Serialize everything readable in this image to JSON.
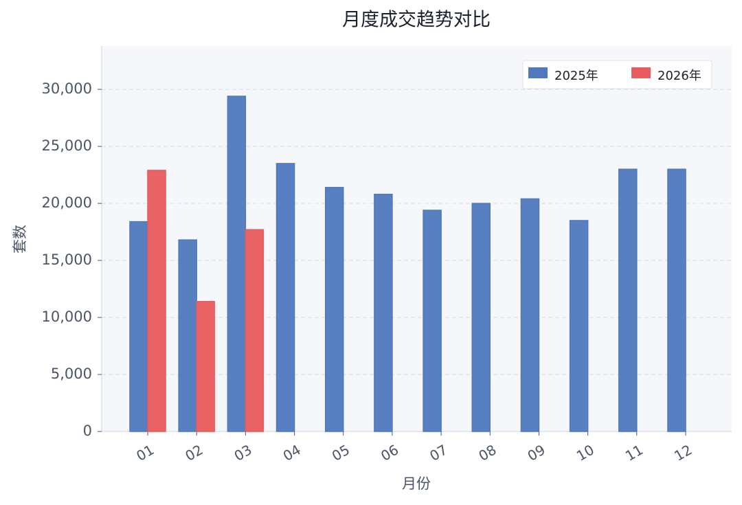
{
  "chart_data": {
    "type": "bar",
    "title": "月度成交趋势对比",
    "x_label": "月份",
    "y_label": "套数",
    "categories": [
      "01",
      "02",
      "03",
      "04",
      "05",
      "06",
      "07",
      "08",
      "09",
      "10",
      "11",
      "12"
    ],
    "series": [
      {
        "name": "2025年",
        "color": "#4f78bd",
        "values": [
          18400,
          16800,
          29400,
          23500,
          21400,
          20800,
          19400,
          20000,
          20400,
          18500,
          23000,
          23000
        ]
      },
      {
        "name": "2026年",
        "color": "#e85b5e",
        "values": [
          22900,
          11400,
          17700,
          null,
          null,
          null,
          null,
          null,
          null,
          null,
          null,
          null
        ]
      }
    ],
    "ylim": [
      0,
      33800
    ],
    "yticks": [
      0,
      {
        "value": 5000,
        "label": "5,000"
      },
      {
        "value": 10000,
        "label": "10,000"
      },
      {
        "value": 15000,
        "label": "15,000"
      },
      {
        "value": 20000,
        "label": "20,000"
      },
      {
        "value": 25000,
        "label": "25,000"
      },
      {
        "value": 30000,
        "label": "30,000"
      }
    ],
    "grid": true,
    "legend": "upper right"
  }
}
